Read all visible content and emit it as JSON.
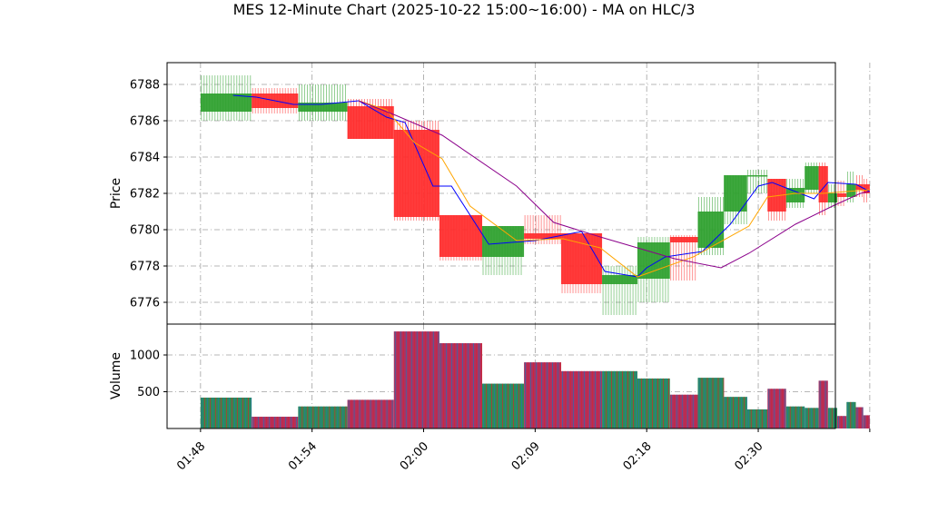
{
  "chart_data": {
    "type": "candlestick",
    "title": "MES 12-Minute Chart (2025-10-22 15:00~16:00) - MA on HLC/3",
    "price_panel": {
      "ylabel": "Price",
      "ylim": [
        6774.8,
        6789.2
      ],
      "yticks": [
        6776,
        6778,
        6780,
        6782,
        6784,
        6786,
        6788
      ]
    },
    "volume_panel": {
      "ylabel": "Volume",
      "ylim": [
        0,
        1420
      ],
      "yticks": [
        500,
        1000
      ]
    },
    "xlim": [
      -0.6,
      71.3
    ],
    "xticks": [
      {
        "x": 3,
        "label": "01:48"
      },
      {
        "x": 15,
        "label": "01:54"
      },
      {
        "x": 27,
        "label": "02:00"
      },
      {
        "x": 39,
        "label": "02:09"
      },
      {
        "x": 51,
        "label": "02:18"
      },
      {
        "x": 63,
        "label": "02:30"
      },
      {
        "x": 75,
        "label": ""
      }
    ],
    "grid": true,
    "colors": {
      "up": "#2ca02c",
      "down": "#ff2a2a",
      "ma_fast": "#0000ff",
      "ma_mid": "#ffa500",
      "ma_slow": "#8b008b",
      "vol_up": "#1f77b4",
      "vol_down": "#d62728"
    },
    "candles": [
      {
        "x0": 3.0,
        "x1": 8.5,
        "open": 6786.5,
        "close": 6787.5,
        "high": 6788.5,
        "low": 6786.0,
        "volume": 420
      },
      {
        "x0": 8.5,
        "x1": 13.5,
        "open": 6787.5,
        "close": 6786.7,
        "high": 6787.8,
        "low": 6786.4,
        "volume": 160
      },
      {
        "x0": 13.5,
        "x1": 18.8,
        "open": 6786.5,
        "close": 6787.0,
        "high": 6788.0,
        "low": 6786.0,
        "volume": 300
      },
      {
        "x0": 18.8,
        "x1": 23.8,
        "open": 6786.8,
        "close": 6785.0,
        "high": 6787.2,
        "low": 6785.0,
        "volume": 390
      },
      {
        "x0": 23.8,
        "x1": 28.7,
        "open": 6785.5,
        "close": 6780.7,
        "high": 6786.0,
        "low": 6780.5,
        "volume": 1320
      },
      {
        "x0": 28.7,
        "x1": 33.3,
        "open": 6780.8,
        "close": 6778.5,
        "high": 6780.8,
        "low": 6778.3,
        "volume": 1160
      },
      {
        "x0": 33.3,
        "x1": 37.8,
        "open": 6778.5,
        "close": 6780.2,
        "high": 6780.2,
        "low": 6777.5,
        "volume": 610
      },
      {
        "x0": 37.8,
        "x1": 41.8,
        "open": 6779.8,
        "close": 6779.5,
        "high": 6780.8,
        "low": 6779.2,
        "volume": 900
      },
      {
        "x0": 41.8,
        "x1": 46.2,
        "open": 6779.8,
        "close": 6777.0,
        "high": 6779.8,
        "low": 6776.5,
        "volume": 780
      },
      {
        "x0": 46.2,
        "x1": 50.0,
        "open": 6777.0,
        "close": 6777.5,
        "high": 6778.0,
        "low": 6775.3,
        "volume": 780
      },
      {
        "x0": 50.0,
        "x1": 53.5,
        "open": 6777.3,
        "close": 6779.3,
        "high": 6779.6,
        "low": 6776.0,
        "volume": 680
      },
      {
        "x0": 53.5,
        "x1": 56.5,
        "open": 6779.6,
        "close": 6779.3,
        "high": 6779.7,
        "low": 6777.2,
        "volume": 460
      },
      {
        "x0": 56.5,
        "x1": 59.3,
        "open": 6779.0,
        "close": 6781.0,
        "high": 6781.8,
        "low": 6778.6,
        "volume": 690
      },
      {
        "x0": 59.3,
        "x1": 61.8,
        "open": 6781.0,
        "close": 6783.0,
        "high": 6783.0,
        "low": 6780.3,
        "volume": 430
      },
      {
        "x0": 61.8,
        "x1": 64.0,
        "open": 6783.0,
        "close": 6783.0,
        "high": 6783.3,
        "low": 6782.0,
        "volume": 260
      },
      {
        "x0": 64.0,
        "x1": 66.0,
        "open": 6782.8,
        "close": 6781.0,
        "high": 6782.8,
        "low": 6780.5,
        "volume": 540
      },
      {
        "x0": 66.0,
        "x1": 68.0,
        "open": 6781.5,
        "close": 6782.3,
        "high": 6782.8,
        "low": 6781.2,
        "volume": 300
      },
      {
        "x0": 68.0,
        "x1": 69.5,
        "open": 6782.2,
        "close": 6783.5,
        "high": 6783.7,
        "low": 6782.0,
        "volume": 280
      },
      {
        "x0": 69.5,
        "x1": 70.5,
        "open": 6783.5,
        "close": 6781.5,
        "high": 6783.7,
        "low": 6780.8,
        "volume": 650
      },
      {
        "x0": 70.5,
        "x1": 71.5,
        "open": 6781.5,
        "close": 6782.0,
        "high": 6782.5,
        "low": 6781.2,
        "volume": 280
      },
      {
        "x0": 71.5,
        "x1": 72.5,
        "open": 6782.0,
        "close": 6781.8,
        "high": 6782.7,
        "low": 6781.3,
        "volume": 170
      },
      {
        "x0": 72.5,
        "x1": 73.5,
        "open": 6781.8,
        "close": 6782.5,
        "high": 6783.2,
        "low": 6781.5,
        "volume": 360
      },
      {
        "x0": 73.5,
        "x1": 74.3,
        "open": 6782.5,
        "close": 6782.2,
        "high": 6783.0,
        "low": 6781.8,
        "volume": 290
      },
      {
        "x0": 74.3,
        "x1": 75.0,
        "open": 6782.5,
        "close": 6782.0,
        "high": 6782.8,
        "low": 6781.5,
        "volume": 180
      }
    ],
    "ma_series": [
      {
        "key": "ma_fast",
        "points": [
          [
            6.5,
            6787.4
          ],
          [
            9,
            6787.3
          ],
          [
            13,
            6786.9
          ],
          [
            16,
            6786.9
          ],
          [
            20,
            6787.1
          ],
          [
            23,
            6786.2
          ],
          [
            25,
            6785.9
          ],
          [
            28,
            6782.4
          ],
          [
            30,
            6782.4
          ],
          [
            34,
            6779.2
          ],
          [
            39,
            6779.4
          ],
          [
            44,
            6779.9
          ],
          [
            46.5,
            6777.7
          ],
          [
            50,
            6777.4
          ],
          [
            51,
            6777.9
          ],
          [
            53,
            6778.5
          ],
          [
            57,
            6778.8
          ],
          [
            60,
            6780.3
          ],
          [
            63,
            6782.4
          ],
          [
            64.5,
            6782.6
          ],
          [
            66,
            6782.3
          ],
          [
            69,
            6781.7
          ],
          [
            70.5,
            6782.6
          ],
          [
            73.5,
            6782.5
          ],
          [
            75,
            6782.1
          ]
        ]
      },
      {
        "key": "ma_mid",
        "points": [
          [
            20,
            6787.1
          ],
          [
            23,
            6786.6
          ],
          [
            26,
            6784.8
          ],
          [
            29,
            6783.9
          ],
          [
            32,
            6781.3
          ],
          [
            37,
            6779.4
          ],
          [
            42,
            6779.5
          ],
          [
            46,
            6779.0
          ],
          [
            50,
            6777.4
          ],
          [
            56,
            6778.5
          ],
          [
            62,
            6780.2
          ],
          [
            64,
            6781.8
          ],
          [
            67,
            6782.0
          ],
          [
            70,
            6782.0
          ],
          [
            75,
            6782.2
          ]
        ]
      },
      {
        "key": "ma_slow",
        "points": [
          [
            20,
            6787.1
          ],
          [
            24,
            6786.3
          ],
          [
            29,
            6785.2
          ],
          [
            37,
            6782.4
          ],
          [
            41,
            6780.4
          ],
          [
            46,
            6779.6
          ],
          [
            54,
            6778.4
          ],
          [
            59,
            6777.9
          ],
          [
            62,
            6778.7
          ],
          [
            67,
            6780.3
          ],
          [
            71,
            6781.3
          ],
          [
            74,
            6782.0
          ],
          [
            75,
            6782.1
          ]
        ]
      }
    ]
  }
}
